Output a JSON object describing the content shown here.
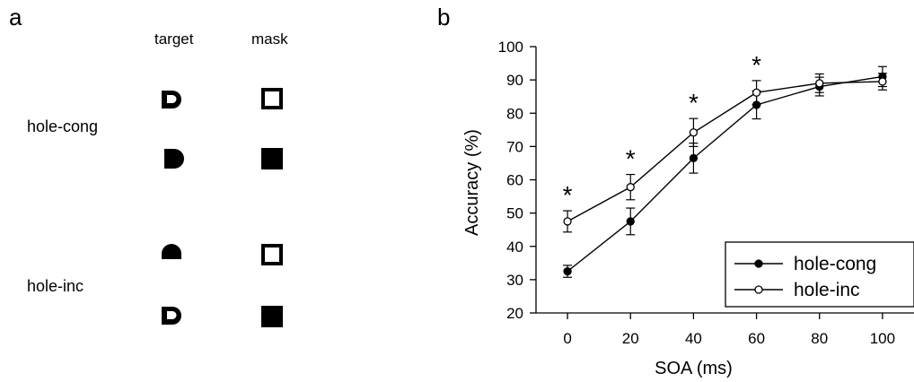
{
  "panel_a": {
    "letter": "a",
    "col_target": "target",
    "col_mask": "mask",
    "row_labels": [
      "hole-cong",
      "hole-inc"
    ]
  },
  "panel_b": {
    "letter": "b"
  },
  "chart_data": {
    "type": "line",
    "xlabel": "SOA (ms)",
    "ylabel": "Accuracy (%)",
    "x": [
      0,
      20,
      40,
      60,
      80,
      100
    ],
    "xlim": [
      -10,
      110
    ],
    "ylim": [
      20,
      100
    ],
    "xticks": [
      0,
      20,
      40,
      60,
      80,
      100
    ],
    "yticks": [
      20,
      30,
      40,
      50,
      60,
      70,
      80,
      90,
      100
    ],
    "series": [
      {
        "name": "hole-cong",
        "marker": "filled-circle",
        "color": "#000000",
        "values": [
          32.5,
          47.5,
          66.5,
          82.5,
          88.0,
          91.0
        ],
        "error": [
          1.8,
          4.0,
          4.5,
          4.2,
          2.8,
          3.0
        ]
      },
      {
        "name": "hole-inc",
        "marker": "open-circle",
        "color": "#000000",
        "values": [
          47.5,
          57.8,
          74.2,
          86.2,
          89.0,
          89.5
        ],
        "error": [
          3.2,
          3.8,
          4.2,
          3.6,
          2.8,
          2.5
        ]
      }
    ],
    "significance": {
      "symbol": "*",
      "at_x": [
        0,
        20,
        40,
        60
      ]
    },
    "legend_position": "bottom-right",
    "grid": false
  }
}
